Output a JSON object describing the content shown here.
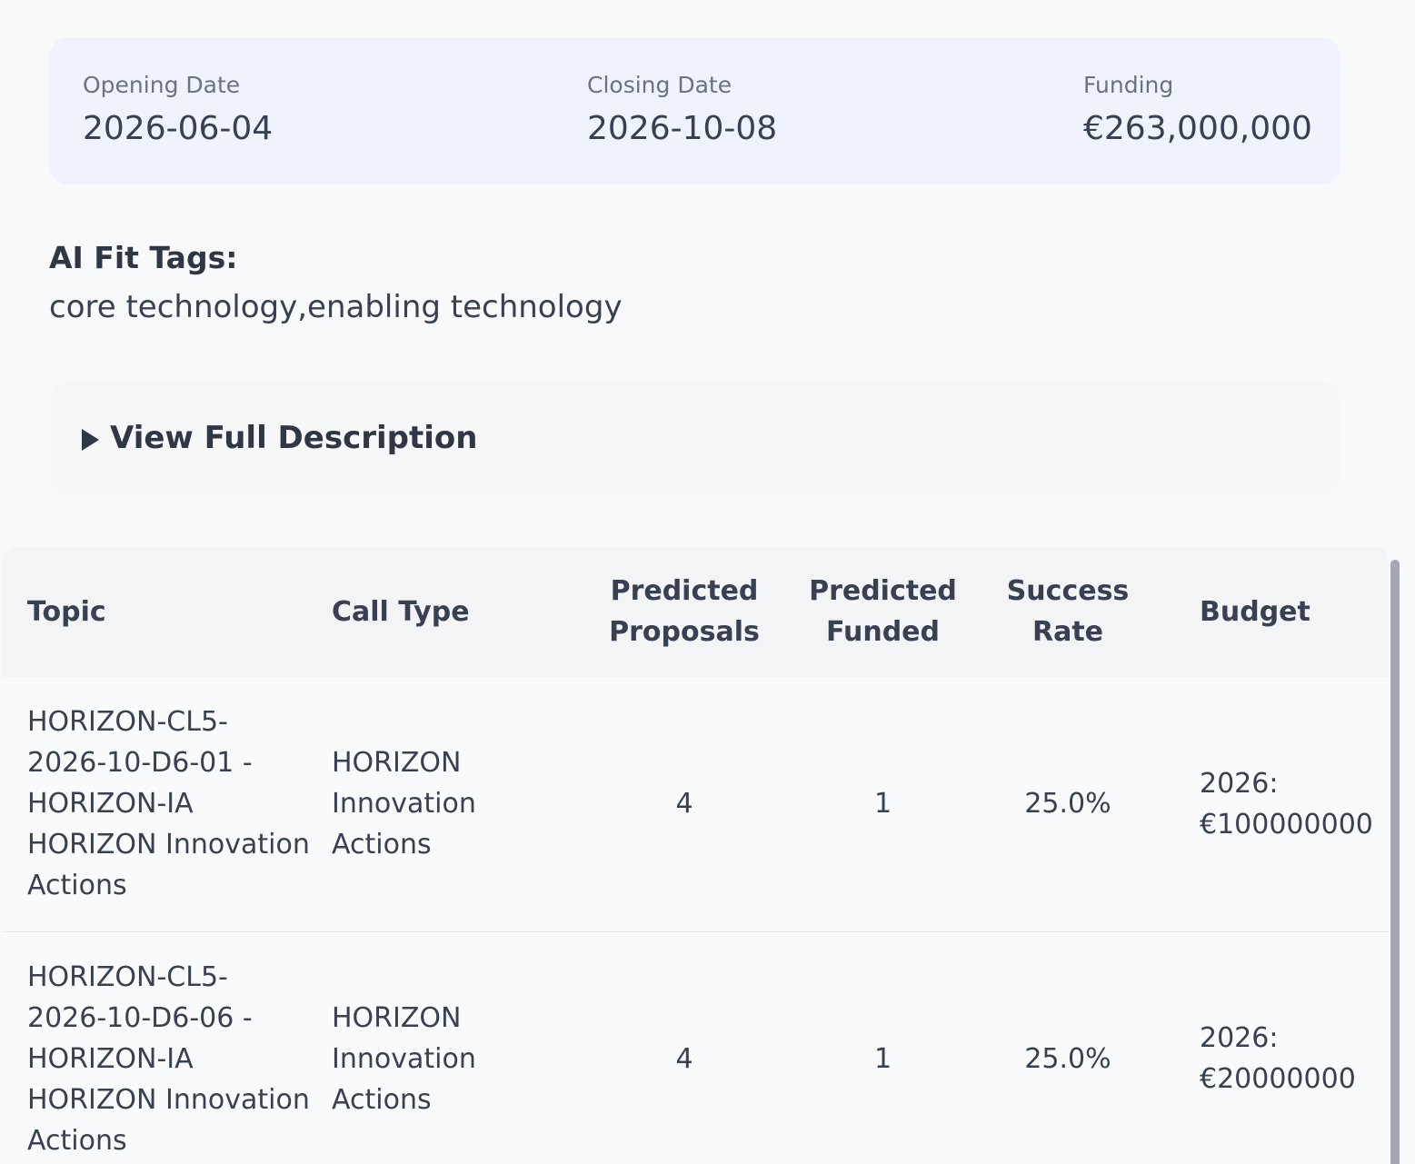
{
  "info": {
    "opening_label": "Opening Date",
    "opening_value": "2026-06-04",
    "closing_label": "Closing Date",
    "closing_value": "2026-10-08",
    "funding_label": "Funding",
    "funding_value": "€263,000,000"
  },
  "tags": {
    "title": "AI Fit Tags:",
    "value": "core technology,enabling technology"
  },
  "details": {
    "summary_label": "View Full Description",
    "caret_icon": "triangle-right-icon"
  },
  "table": {
    "headers": {
      "topic": "Topic",
      "call_type": "Call Type",
      "predicted_proposals_1": "Predicted",
      "predicted_proposals_2": "Proposals",
      "predicted_funded_1": "Predicted",
      "predicted_funded_2": "Funded",
      "success_rate_1": "Success",
      "success_rate_2": "Rate",
      "budget": "Budget"
    },
    "rows": [
      {
        "topic_lines": [
          "HORIZON-CL5-",
          "2026-10-D6-01 -",
          "HORIZON-IA",
          "HORIZON Innovation",
          "Actions"
        ],
        "call_type_lines": [
          "HORIZON",
          "Innovation",
          "Actions"
        ],
        "predicted_proposals": "4",
        "predicted_funded": "1",
        "success_rate": "25.0%",
        "budget_lines": [
          "2026:",
          "€100000000"
        ]
      },
      {
        "topic_lines": [
          "HORIZON-CL5-",
          "2026-10-D6-06 -",
          "HORIZON-IA",
          "HORIZON Innovation",
          "Actions"
        ],
        "call_type_lines": [
          "HORIZON",
          "Innovation",
          "Actions"
        ],
        "predicted_proposals": "4",
        "predicted_funded": "1",
        "success_rate": "25.0%",
        "budget_lines": [
          "2026:",
          "€20000000"
        ]
      }
    ]
  },
  "colors": {
    "page_bg": "#f8f9fb",
    "info_card_bg": "#eef3fc",
    "table_header_bg": "#f3f4f6",
    "text": "#374151",
    "muted_text": "#6b7280",
    "scrollbar": "#a3a8b0"
  }
}
